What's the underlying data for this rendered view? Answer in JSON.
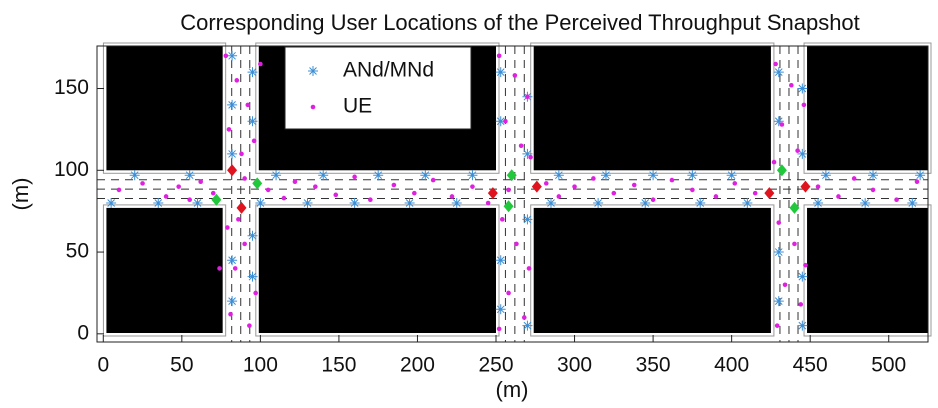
{
  "chart_data": {
    "type": "scatter",
    "title": "Corresponding User Locations of the Perceived Throughput Snapshot",
    "x_label": "(m)",
    "y_label": "(m)",
    "xlim": [
      -4,
      525
    ],
    "ylim": [
      -5,
      176
    ],
    "xticks": [
      0,
      50,
      100,
      150,
      200,
      250,
      300,
      350,
      400,
      450,
      500
    ],
    "yticks": [
      0,
      50,
      100,
      150
    ],
    "legend": "upper center",
    "building_color": "#000000",
    "buildings": [
      {
        "x": [
          2,
          76
        ],
        "y": [
          100,
          176
        ]
      },
      {
        "x": [
          99,
          250
        ],
        "y": [
          100,
          176
        ]
      },
      {
        "x": [
          274,
          425
        ],
        "y": [
          100,
          176
        ]
      },
      {
        "x": [
          448,
          525
        ],
        "y": [
          100,
          176
        ]
      },
      {
        "x": [
          2,
          76
        ],
        "y": [
          0.5,
          77
        ]
      },
      {
        "x": [
          99,
          250
        ],
        "y": [
          0.5,
          77
        ]
      },
      {
        "x": [
          274,
          425
        ],
        "y": [
          0.5,
          77
        ]
      },
      {
        "x": [
          448,
          525
        ],
        "y": [
          0.5,
          77
        ]
      }
    ],
    "series": [
      {
        "name": "ANd/MNd",
        "color": "#3c8fd6",
        "marker": "asterisk",
        "x": [
          20,
          55,
          110,
          140,
          175,
          205,
          235,
          290,
          320,
          350,
          375,
          400,
          460,
          490,
          520,
          5,
          35,
          60,
          100,
          130,
          160,
          195,
          225,
          285,
          315,
          345,
          380,
          410,
          455,
          485,
          515,
          82,
          82,
          82,
          82,
          82,
          95,
          95,
          95,
          95,
          253,
          253,
          253,
          253,
          270,
          270,
          270,
          270,
          430,
          430,
          430,
          430,
          445,
          445,
          445,
          445
        ],
        "y": [
          97,
          97,
          97,
          97,
          97,
          97,
          97,
          97,
          97,
          97,
          97,
          97,
          97,
          97,
          97,
          80,
          80,
          80,
          80,
          80,
          80,
          80,
          80,
          80,
          80,
          80,
          80,
          80,
          80,
          80,
          80,
          20,
          45,
          110,
          140,
          170,
          35,
          60,
          130,
          160,
          15,
          45,
          130,
          160,
          5,
          70,
          110,
          145,
          20,
          50,
          130,
          160,
          5,
          35,
          110,
          150
        ]
      },
      {
        "name": "UE",
        "color": "#e020e0",
        "marker": "dot",
        "x": [
          10,
          25,
          40,
          48,
          55,
          62,
          70,
          90,
          105,
          115,
          122,
          135,
          148,
          160,
          170,
          185,
          198,
          210,
          222,
          235,
          245,
          258,
          282,
          290,
          300,
          312,
          325,
          338,
          350,
          362,
          375,
          390,
          402,
          415,
          455,
          468,
          478,
          490,
          505,
          518,
          78,
          85,
          92,
          80,
          88,
          96,
          79,
          90,
          84,
          97,
          81,
          93,
          86,
          252,
          262,
          270,
          256,
          266,
          272,
          254,
          263,
          271,
          258,
          268,
          252,
          428,
          438,
          446,
          432,
          442,
          427,
          430,
          440,
          447,
          434,
          444,
          429,
          100,
          74
        ],
        "y": [
          88,
          92,
          84,
          90,
          82,
          93,
          86,
          95,
          88,
          83,
          93,
          90,
          85,
          96,
          82,
          91,
          86,
          94,
          84,
          90,
          80,
          88,
          92,
          84,
          90,
          95,
          86,
          91,
          82,
          94,
          88,
          84,
          92,
          86,
          90,
          84,
          95,
          88,
          82,
          93,
          170,
          155,
          140,
          125,
          110,
          118,
          65,
          55,
          40,
          25,
          12,
          5,
          70,
          170,
          158,
          145,
          130,
          115,
          108,
          70,
          55,
          40,
          25,
          10,
          3,
          165,
          152,
          140,
          128,
          112,
          105,
          68,
          55,
          42,
          30,
          18,
          5,
          165,
          40
        ]
      }
    ],
    "signals": [
      {
        "color": "#e0141e",
        "x": [
          82,
          88,
          248,
          276,
          424,
          447
        ],
        "y": [
          100,
          77,
          86,
          90,
          86,
          90
        ]
      },
      {
        "color": "#22c83c",
        "x": [
          98,
          72,
          258,
          260,
          432,
          440
        ],
        "y": [
          92,
          82,
          78,
          97,
          100,
          77
        ]
      }
    ]
  }
}
